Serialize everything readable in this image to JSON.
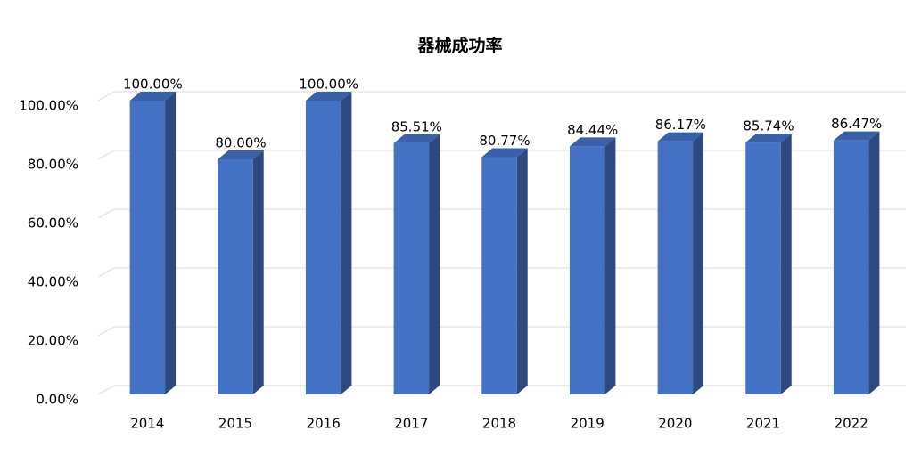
{
  "chart_data": {
    "type": "bar3d",
    "title": "器械成功率",
    "categories": [
      "2014",
      "2015",
      "2016",
      "2017",
      "2018",
      "2019",
      "2020",
      "2021",
      "2022"
    ],
    "values": [
      100,
      80,
      100,
      85.51,
      80.77,
      84.44,
      86.17,
      85.74,
      86.47
    ],
    "value_labels": [
      "100.00%",
      "80.00%",
      "100.00%",
      "85.51%",
      "80.77%",
      "84.44%",
      "86.17%",
      "85.74%",
      "86.47%"
    ],
    "color": "#4472c4",
    "ylim": [
      0,
      100
    ],
    "yticks": [
      {
        "value": 0,
        "label": "0.00%"
      },
      {
        "value": 20,
        "label": "20.00%"
      },
      {
        "value": 40,
        "label": "40.00%"
      },
      {
        "value": 60,
        "label": "60.00%"
      },
      {
        "value": 80,
        "label": "80.00%"
      },
      {
        "value": 100,
        "label": "100.00%"
      }
    ],
    "grid": true
  }
}
